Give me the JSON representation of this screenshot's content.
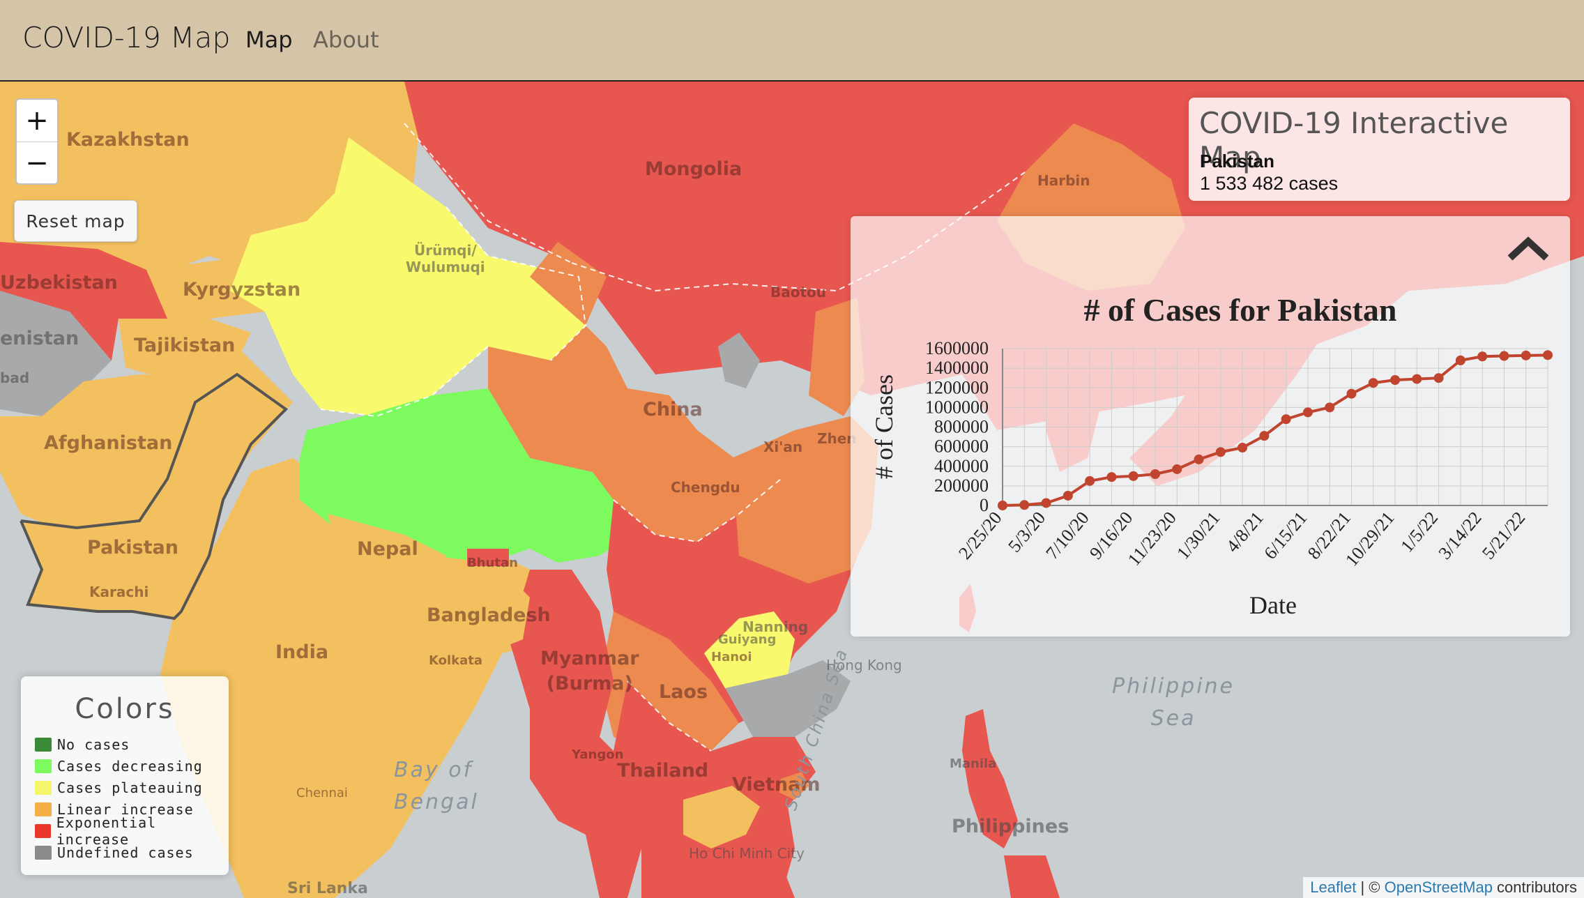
{
  "navbar": {
    "brand": "COVID-19 Map",
    "links": [
      "Map",
      "About"
    ]
  },
  "map": {
    "zoom_in": "+",
    "zoom_out": "−",
    "reset_label": "Reset map",
    "labels": {
      "kazakhstan": "Kazakhstan",
      "mongolia": "Mongolia",
      "uzbekistan": "Uzbekistan",
      "kyrgyzstan": "Kyrgyzstan",
      "tajikistan": "Tajikistan",
      "afghanistan": "Afghanistan",
      "pakistan": "Pakistan",
      "karachi": "Karachi",
      "india": "India",
      "nepal": "Nepal",
      "bangladesh": "Bangladesh",
      "china": "China",
      "chengdu": "Chengdu",
      "urumqi": "Ürümqi/\nWulumuqi",
      "baotou": "Baotou",
      "harbin": "Harbin",
      "xian": "Xi'an",
      "zhen": "Zhen",
      "guiyang": "Guiyang",
      "nanning": "Nanning",
      "hong_kong": "Hong Kong",
      "myanmar": "Myanmar\n(Burma)",
      "laos": "Laos",
      "thailand": "Thailand",
      "vietnam": "Vietnam",
      "hanoi": "Hanoi",
      "ho_chi_minh": "Ho Chi Minh City",
      "philippines": "Philippines",
      "manila": "Manila",
      "philippine_sea": "Philippine\nSea",
      "bay_of_bengal": "Bay of\nBengal",
      "south_china_sea": "South China Sea",
      "chennai": "Chennai",
      "kolkata": "Kolkata",
      "sri_lanka": "Sri Lanka",
      "enistan": "enistan",
      "bad": "bad",
      "bhutan": "Bhutan",
      "yangon": "Yangon"
    },
    "attribution": {
      "leaflet": "Leaflet",
      "sep": " | © ",
      "osm": "OpenStreetMap",
      "suffix": " contributors"
    }
  },
  "info": {
    "title": "COVID-19 Interactive Map",
    "country": "Pakistan",
    "cases": "1 533 482 cases"
  },
  "legend": {
    "title": "Colors",
    "items": [
      {
        "label": "No cases",
        "color": "#3a8a3a"
      },
      {
        "label": "Cases decreasing",
        "color": "#7dfa5e"
      },
      {
        "label": "Cases plateauing",
        "color": "#f5f56a"
      },
      {
        "label": "Linear increase",
        "color": "#f4b046"
      },
      {
        "label": "Exponential increase",
        "color": "#e8382b"
      },
      {
        "label": "Undefined cases",
        "color": "#8a8a8a"
      }
    ]
  },
  "colors": {
    "exponential": "#e85650",
    "linear": "#f2c05e",
    "plateau": "#f9f96e",
    "decreasing": "#7dfa5e",
    "orange": "#ec8a50",
    "undefined": "#a7a9ab",
    "water": "#c9ced1"
  },
  "chart_data": {
    "type": "line",
    "title": "# of Cases for Pakistan",
    "xlabel": "Date",
    "ylabel": "# of Cases",
    "ylim": [
      0,
      1600000
    ],
    "yticks": [
      0,
      200000,
      400000,
      600000,
      800000,
      1000000,
      1200000,
      1400000,
      1600000
    ],
    "xticks": [
      "2/25/20",
      "5/3/20",
      "7/10/20",
      "9/16/20",
      "11/23/20",
      "1/30/21",
      "4/8/21",
      "6/15/21",
      "8/22/21",
      "10/29/21",
      "1/5/22",
      "3/14/22",
      "5/21/22"
    ],
    "x": [
      "2/25/20",
      "4/1/20",
      "5/3/20",
      "6/6/20",
      "7/10/20",
      "8/13/20",
      "9/16/20",
      "10/20/20",
      "11/23/20",
      "12/27/20",
      "1/30/21",
      "3/5/21",
      "4/8/21",
      "5/12/21",
      "6/15/21",
      "7/19/21",
      "8/22/21",
      "9/25/21",
      "10/29/21",
      "12/2/21",
      "1/5/22",
      "2/8/22",
      "3/14/22",
      "4/17/22",
      "5/21/22",
      "6/24/22"
    ],
    "values": [
      0,
      5000,
      25000,
      100000,
      250000,
      290000,
      300000,
      320000,
      370000,
      470000,
      545000,
      590000,
      710000,
      880000,
      950000,
      1000000,
      1140000,
      1250000,
      1280000,
      1290000,
      1300000,
      1480000,
      1520000,
      1525000,
      1530000,
      1533482
    ],
    "grid": true,
    "color": "#c0442e"
  }
}
